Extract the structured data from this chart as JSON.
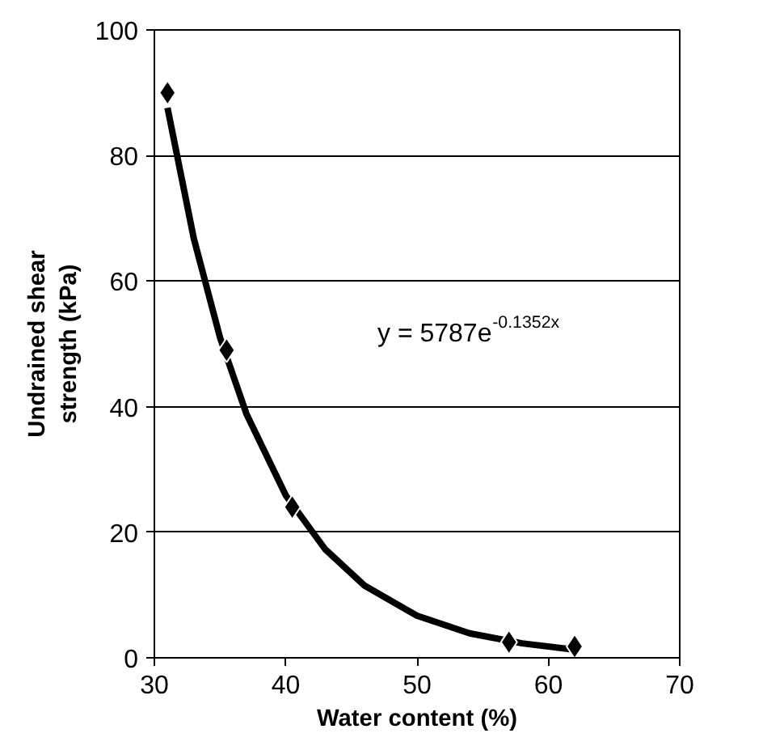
{
  "chart_data": {
    "type": "scatter",
    "xlabel": "Water content (%)",
    "ylabel": "Undrained shear\nstrength (kPa)",
    "xlim": [
      30,
      70
    ],
    "xticks": [
      30,
      40,
      50,
      60,
      70
    ],
    "ylim": [
      0,
      100
    ],
    "yticks": [
      0,
      20,
      40,
      60,
      80,
      100
    ],
    "grid": "y",
    "marker": "diamond",
    "annotations": [
      "y = 5787e$^{-0.1352x}$"
    ],
    "series": [
      {
        "color": "#000000",
        "x": [
          31,
          35.5,
          40.5,
          57,
          62
        ],
        "values": [
          90,
          49,
          24,
          2.5,
          1.8
        ]
      },
      {
        "type": "line",
        "color": "#000000",
        "line_style": "solid",
        "marker": "none",
        "x": [
          31,
          33,
          35,
          37,
          40,
          43,
          46,
          50,
          54,
          58,
          62
        ],
        "values": [
          87.6,
          66.8,
          51.0,
          38.9,
          25.9,
          17.3,
          11.5,
          6.7,
          3.9,
          2.3,
          1.3
        ]
      }
    ]
  }
}
